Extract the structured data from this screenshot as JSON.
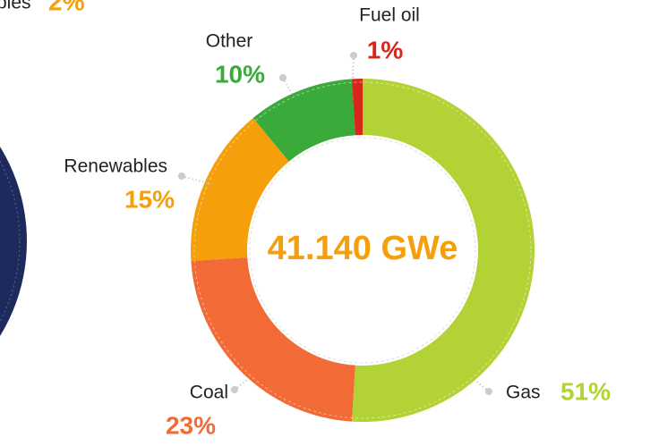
{
  "chart_data": {
    "type": "donut",
    "center_label": "41.140 GWe",
    "categories": [
      "Gas",
      "Coal",
      "Renewables",
      "Other",
      "Fuel oil"
    ],
    "values": [
      51,
      23,
      15,
      10,
      1
    ],
    "value_labels": [
      "51%",
      "23%",
      "15%",
      "10%",
      "1%"
    ],
    "colors": [
      "#b2d235",
      "#f26a35",
      "#f59f0a",
      "#3aaa3a",
      "#d9261c"
    ]
  },
  "cropped_label": {
    "text": "bles",
    "value": 2,
    "value_label": "2%"
  }
}
